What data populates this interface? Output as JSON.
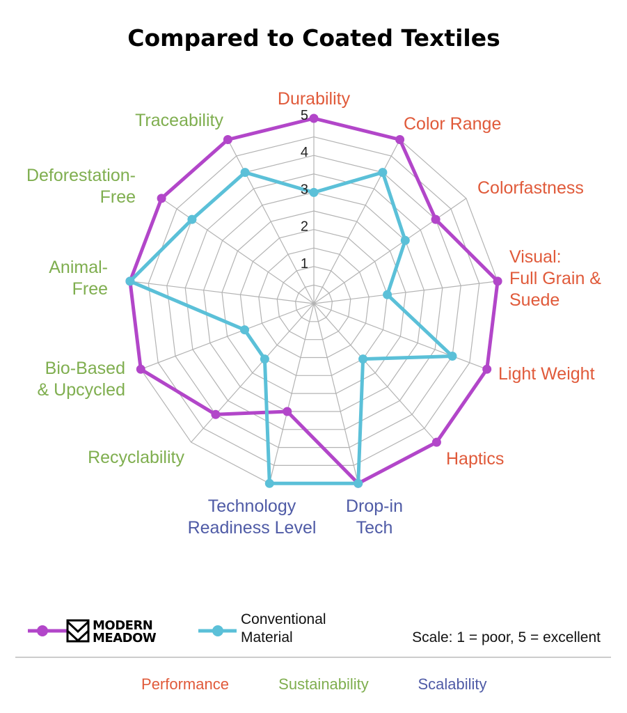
{
  "chart_data": {
    "type": "radar",
    "title": "Compared to Coated Textiles",
    "axes": [
      {
        "label": "Durability",
        "group": "Performance"
      },
      {
        "label": "Color Range",
        "group": "Performance"
      },
      {
        "label": "Colorfastness",
        "group": "Performance"
      },
      {
        "label": "Visual:\nFull Grain &\nSuede",
        "group": "Performance"
      },
      {
        "label": "Light Weight",
        "group": "Performance"
      },
      {
        "label": "Haptics",
        "group": "Performance"
      },
      {
        "label": "Drop-in\nTech",
        "group": "Scalability"
      },
      {
        "label": "Technology\nReadiness Level",
        "group": "Scalability"
      },
      {
        "label": "Recyclability",
        "group": "Sustainability"
      },
      {
        "label": "Bio-Based\n& Upcycled",
        "group": "Sustainability"
      },
      {
        "label": "Animal-\nFree",
        "group": "Sustainability"
      },
      {
        "label": "Deforestation-\nFree",
        "group": "Sustainability"
      },
      {
        "label": "Traceability",
        "group": "Sustainability"
      }
    ],
    "scale": {
      "min": 0,
      "max": 5,
      "ticks": [
        1,
        2,
        3,
        4,
        5
      ]
    },
    "series": [
      {
        "name": "MODERN MEADOW",
        "color": "#b246c9",
        "values": [
          5,
          5,
          4,
          5,
          5,
          5,
          5,
          3,
          4,
          5,
          5,
          5,
          5
        ]
      },
      {
        "name": "Conventional Material",
        "color": "#5bc0d8",
        "values": [
          3,
          4,
          3,
          2,
          4,
          2,
          5,
          5,
          2,
          2,
          5,
          4,
          4
        ]
      }
    ],
    "group_colors": {
      "Performance": "#e05a3a",
      "Sustainability": "#7fae4f",
      "Scalability": "#4f5ba6"
    }
  },
  "legend": {
    "brand_line1": "MODERN",
    "brand_line2": "MEADOW",
    "conventional_line1": "Conventional",
    "conventional_line2": "Material",
    "scale_note": "Scale: 1 = poor, 5 = excellent"
  },
  "categories": [
    "Performance",
    "Sustainability",
    "Scalability"
  ],
  "colors": {
    "grid": "#b3b3b3",
    "divider": "#bbbbbb"
  }
}
